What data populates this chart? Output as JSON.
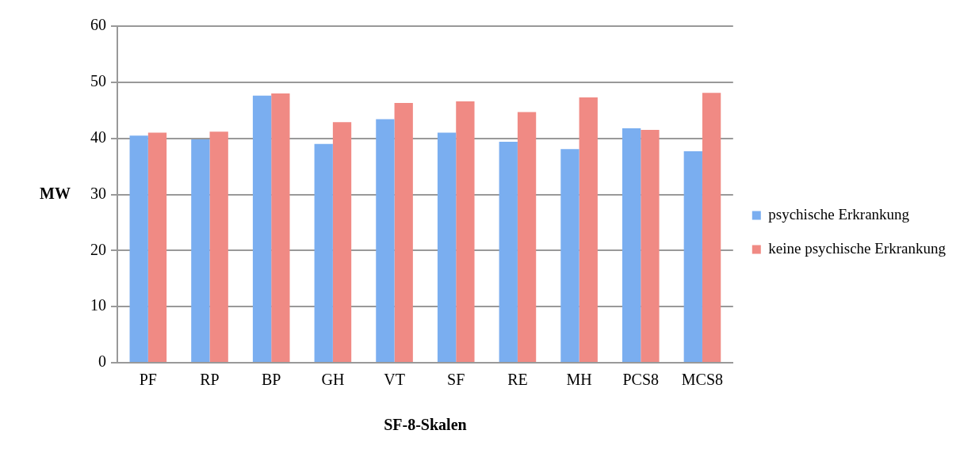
{
  "chart_data": {
    "type": "bar",
    "xlabel": "SF-8-Skalen",
    "ylabel": "MW",
    "categories": [
      "PF",
      "RP",
      "BP",
      "GH",
      "VT",
      "SF",
      "RE",
      "MH",
      "PCS8",
      "MCS8"
    ],
    "series": [
      {
        "name": "psychische Erkrankung",
        "color": "#7aaef0",
        "values": [
          40.5,
          39.8,
          47.6,
          39.0,
          43.4,
          41.0,
          39.4,
          38.1,
          41.8,
          37.7
        ]
      },
      {
        "name": "keine psychische Erkrankung",
        "color": "#f08a84",
        "values": [
          41.0,
          41.2,
          48.0,
          42.9,
          46.3,
          46.6,
          44.7,
          47.3,
          41.5,
          48.1
        ]
      }
    ],
    "ylim": [
      0,
      60
    ],
    "yticks": [
      0,
      10,
      20,
      30,
      40,
      50,
      60
    ],
    "grid": "y",
    "legend": "right"
  }
}
